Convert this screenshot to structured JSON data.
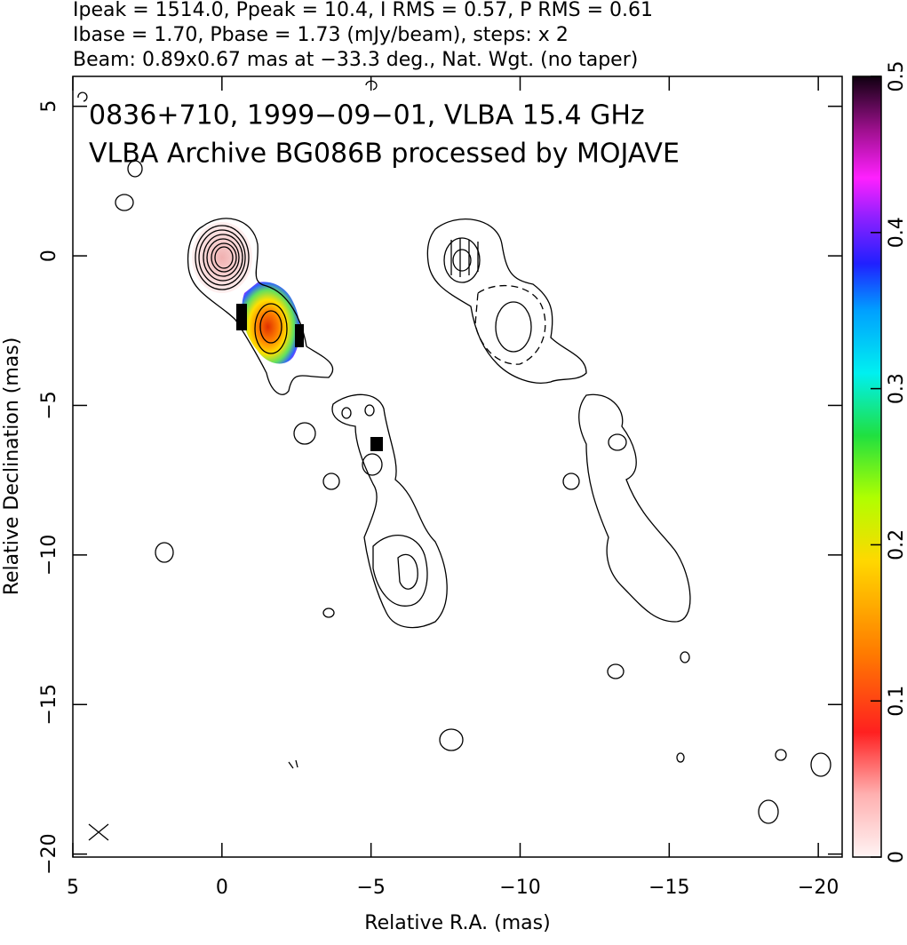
{
  "chart_data": {
    "type": "contour-map",
    "header_lines": [
      "Ipeak = 1514.0, Ppeak = 10.4, I RMS = 0.57, P RMS = 0.61",
      "Ibase = 1.70, Pbase = 1.73 (mJy/beam), steps: x 2",
      "Beam: 0.89x0.67 mas at −33.3 deg., Nat. Wgt. (no taper)"
    ],
    "annotations": [
      "0836+710, 1999−09−01, VLBA 15.4 GHz",
      "VLBA Archive BG086B processed by MOJAVE"
    ],
    "x_label": "Relative R.A. (mas)",
    "y_label": "Relative Declination (mas)",
    "xlim": [
      5,
      -20.8
    ],
    "ylim": [
      -20.1,
      6
    ],
    "xticks": [
      5,
      0,
      {
        "value": -5,
        "label": "−5"
      },
      {
        "value": -10,
        "label": "−10"
      },
      {
        "value": -15,
        "label": "−15"
      },
      {
        "value": -20,
        "label": "−20"
      }
    ],
    "yticks": [
      5,
      0,
      {
        "value": -5,
        "label": "−5"
      },
      {
        "value": -10,
        "label": "−10"
      },
      {
        "value": -15,
        "label": "−15"
      },
      {
        "value": -20,
        "label": "−20"
      }
    ],
    "colorbar": {
      "lim": [
        0,
        0.5
      ],
      "ticks": [
        0,
        0.1,
        0.2,
        0.3,
        0.4,
        0.5
      ]
    }
  }
}
